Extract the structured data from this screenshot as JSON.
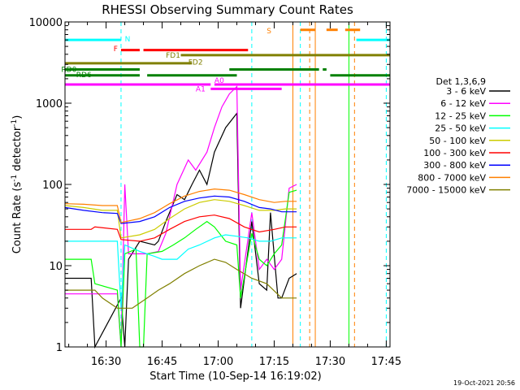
{
  "chart_data": {
    "type": "line",
    "title": "RHESSI Observing Summary Count Rates",
    "xlabel": "Start Time (10-Sep-14 16:19:02)",
    "ylabel": "Count Rate (s-1 detector-1)",
    "x_unit": "minutes after 16:19:02",
    "xlim": [
      0,
      87
    ],
    "ylim": [
      1,
      10000
    ],
    "y_scale": "log",
    "x_ticks": [
      {
        "x": 11,
        "label": "16:30"
      },
      {
        "x": 26,
        "label": "16:45"
      },
      {
        "x": 41,
        "label": "17:00"
      },
      {
        "x": 56,
        "label": "17:15"
      },
      {
        "x": 71,
        "label": "17:30"
      },
      {
        "x": 86,
        "label": "17:45"
      }
    ],
    "y_ticks": [
      {
        "y": 10000,
        "label": "10000"
      },
      {
        "y": 1000,
        "label": "1000"
      },
      {
        "y": 100,
        "label": "100"
      },
      {
        "y": 10,
        "label": "10"
      },
      {
        "y": 1,
        "label": "1"
      }
    ],
    "legend_title": "Det 1,3,6,9",
    "legend_position": "right",
    "series": [
      {
        "name": "3 - 6 keV",
        "color": "#000000",
        "points": [
          [
            0,
            7
          ],
          [
            7,
            7
          ],
          [
            8,
            1
          ],
          [
            15,
            4
          ],
          [
            16,
            1
          ],
          [
            17,
            12
          ],
          [
            20,
            20
          ],
          [
            24,
            18
          ],
          [
            25,
            20
          ],
          [
            27,
            35
          ],
          [
            30,
            75
          ],
          [
            32,
            65
          ],
          [
            34,
            100
          ],
          [
            36,
            150
          ],
          [
            38,
            100
          ],
          [
            40,
            250
          ],
          [
            43,
            500
          ],
          [
            46,
            750
          ],
          [
            47,
            3
          ],
          [
            50,
            35
          ],
          [
            52,
            6
          ],
          [
            54,
            5
          ],
          [
            55,
            45
          ],
          [
            57,
            4
          ],
          [
            58,
            4
          ],
          [
            60,
            7
          ],
          [
            62,
            8
          ]
        ]
      },
      {
        "name": "6 - 12 keV",
        "color": "#ff00ff",
        "points": [
          [
            0,
            4.5
          ],
          [
            14,
            4.5
          ],
          [
            15,
            1
          ],
          [
            16,
            100
          ],
          [
            17,
            14
          ],
          [
            22,
            14
          ],
          [
            25,
            15
          ],
          [
            27,
            25
          ],
          [
            30,
            100
          ],
          [
            33,
            200
          ],
          [
            35,
            150
          ],
          [
            38,
            250
          ],
          [
            40,
            500
          ],
          [
            42,
            900
          ],
          [
            44,
            1300
          ],
          [
            46,
            1600
          ],
          [
            47,
            5
          ],
          [
            50,
            45
          ],
          [
            52,
            9
          ],
          [
            54,
            12
          ],
          [
            56,
            9
          ],
          [
            58,
            12
          ],
          [
            60,
            90
          ],
          [
            62,
            100
          ]
        ]
      },
      {
        "name": "12 - 25 keV",
        "color": "#00ff00",
        "points": [
          [
            0,
            12
          ],
          [
            7,
            12
          ],
          [
            8,
            6
          ],
          [
            14,
            5
          ],
          [
            15,
            1
          ],
          [
            16,
            14
          ],
          [
            19,
            16
          ],
          [
            20,
            1
          ],
          [
            21,
            1
          ],
          [
            22,
            14
          ],
          [
            26,
            15
          ],
          [
            29,
            18
          ],
          [
            32,
            22
          ],
          [
            35,
            28
          ],
          [
            38,
            35
          ],
          [
            40,
            30
          ],
          [
            43,
            20
          ],
          [
            46,
            18
          ],
          [
            47,
            4
          ],
          [
            50,
            25
          ],
          [
            52,
            12
          ],
          [
            54,
            10
          ],
          [
            56,
            14
          ],
          [
            58,
            18
          ],
          [
            60,
            80
          ],
          [
            62,
            85
          ]
        ]
      },
      {
        "name": "25 - 50 keV",
        "color": "#00ffff",
        "points": [
          [
            0,
            20
          ],
          [
            14,
            20
          ],
          [
            15,
            3
          ],
          [
            16,
            18
          ],
          [
            20,
            15
          ],
          [
            24,
            13
          ],
          [
            26,
            12
          ],
          [
            30,
            12
          ],
          [
            33,
            16
          ],
          [
            36,
            18
          ],
          [
            40,
            22
          ],
          [
            43,
            24
          ],
          [
            46,
            23
          ],
          [
            49,
            22
          ],
          [
            52,
            20
          ],
          [
            55,
            20
          ],
          [
            58,
            22
          ],
          [
            62,
            22
          ]
        ]
      },
      {
        "name": "50 - 100 keV",
        "color": "#cccc00",
        "points": [
          [
            0,
            55
          ],
          [
            5,
            52
          ],
          [
            10,
            48
          ],
          [
            14,
            48
          ],
          [
            15,
            22
          ],
          [
            20,
            24
          ],
          [
            24,
            28
          ],
          [
            28,
            38
          ],
          [
            32,
            50
          ],
          [
            36,
            60
          ],
          [
            40,
            65
          ],
          [
            44,
            62
          ],
          [
            48,
            55
          ],
          [
            52,
            48
          ],
          [
            56,
            48
          ],
          [
            59,
            50
          ],
          [
            62,
            50
          ]
        ]
      },
      {
        "name": "100 - 300 keV",
        "color": "#ff0000",
        "points": [
          [
            0,
            28
          ],
          [
            7,
            28
          ],
          [
            8,
            30
          ],
          [
            14,
            28
          ],
          [
            15,
            21
          ],
          [
            20,
            20
          ],
          [
            24,
            22
          ],
          [
            28,
            28
          ],
          [
            32,
            35
          ],
          [
            36,
            40
          ],
          [
            40,
            42
          ],
          [
            44,
            38
          ],
          [
            48,
            30
          ],
          [
            52,
            26
          ],
          [
            56,
            28
          ],
          [
            59,
            30
          ],
          [
            62,
            30
          ]
        ]
      },
      {
        "name": "300 - 800 keV",
        "color": "#0000ff",
        "points": [
          [
            0,
            52
          ],
          [
            5,
            48
          ],
          [
            10,
            45
          ],
          [
            14,
            44
          ],
          [
            15,
            33
          ],
          [
            20,
            35
          ],
          [
            24,
            40
          ],
          [
            28,
            52
          ],
          [
            32,
            62
          ],
          [
            36,
            68
          ],
          [
            40,
            72
          ],
          [
            44,
            70
          ],
          [
            48,
            62
          ],
          [
            52,
            52
          ],
          [
            55,
            50
          ],
          [
            58,
            46
          ],
          [
            62,
            46
          ]
        ]
      },
      {
        "name": "800 - 7000 keV",
        "color": "#ff8000",
        "points": [
          [
            0,
            58
          ],
          [
            5,
            57
          ],
          [
            10,
            55
          ],
          [
            14,
            55
          ],
          [
            15,
            34
          ],
          [
            20,
            38
          ],
          [
            24,
            45
          ],
          [
            28,
            58
          ],
          [
            32,
            72
          ],
          [
            36,
            82
          ],
          [
            40,
            88
          ],
          [
            44,
            85
          ],
          [
            48,
            75
          ],
          [
            52,
            65
          ],
          [
            56,
            60
          ],
          [
            59,
            62
          ],
          [
            62,
            62
          ]
        ]
      },
      {
        "name": "7000 - 15000 keV",
        "color": "#808000",
        "points": [
          [
            0,
            5
          ],
          [
            8,
            5
          ],
          [
            10,
            4
          ],
          [
            14,
            3
          ],
          [
            18,
            3
          ],
          [
            22,
            4
          ],
          [
            25,
            5
          ],
          [
            28,
            6
          ],
          [
            32,
            8
          ],
          [
            36,
            10
          ],
          [
            40,
            12
          ],
          [
            43,
            11
          ],
          [
            46,
            9
          ],
          [
            50,
            7
          ],
          [
            54,
            6
          ],
          [
            58,
            4
          ],
          [
            62,
            4
          ]
        ]
      }
    ],
    "flags": [
      {
        "label": "N",
        "color": "#00ffff",
        "segments": [
          [
            0,
            15
          ],
          [
            78,
            87
          ]
        ],
        "y": 6000,
        "label_x": 16,
        "label_y": 6200
      },
      {
        "label": "F",
        "color": "#ff0000",
        "segments": [
          [
            15,
            20
          ],
          [
            21,
            49
          ]
        ],
        "y": 4500,
        "label_x": 13,
        "label_y": 4700
      },
      {
        "label": "FD1",
        "color": "#808000",
        "segments": [
          [
            31,
            87
          ]
        ],
        "y": 3900,
        "label_x": 27,
        "label_y": 3900
      },
      {
        "label": "FD2",
        "color": "#808000",
        "segments": [
          [
            0,
            34
          ]
        ],
        "y": 3100,
        "label_x": 33,
        "label_y": 3200
      },
      {
        "label": "RD0",
        "color": "#008000",
        "segments": [
          [
            0,
            20
          ],
          [
            44,
            68
          ],
          [
            69,
            70
          ]
        ],
        "y": 2600,
        "label_x": -1,
        "label_y": 2600
      },
      {
        "label": "RD6",
        "color": "#008000",
        "segments": [
          [
            0,
            20
          ],
          [
            22,
            46
          ],
          [
            71,
            87
          ]
        ],
        "y": 2200,
        "label_x": 3,
        "label_y": 2250
      },
      {
        "label": "A1",
        "color": "#ff00ff",
        "segments": [
          [
            0,
            39
          ],
          [
            40,
            87
          ]
        ],
        "y": 1700,
        "label_x": 35,
        "label_y": 1500
      },
      {
        "label": "A0",
        "color": "#ff00ff",
        "segments": [
          [
            39,
            58
          ]
        ],
        "y": 1500,
        "label_x": 40,
        "label_y": 1900
      },
      {
        "label": "S",
        "color": "#ff8000",
        "segments": [
          [
            63,
            67
          ],
          [
            70,
            73
          ],
          [
            75,
            79
          ]
        ],
        "y": 8000,
        "label_x": 54,
        "label_y": 7800
      }
    ],
    "vlines": [
      {
        "x": 15,
        "color": "#00ffff",
        "dashed": true
      },
      {
        "x": 50,
        "color": "#00ffff",
        "dashed": true
      },
      {
        "x": 61,
        "color": "#ff8000",
        "dashed": false
      },
      {
        "x": 63,
        "color": "#00ffff",
        "dashed": true
      },
      {
        "x": 65.5,
        "color": "#ff8000",
        "dashed": true
      },
      {
        "x": 67,
        "color": "#ff8000",
        "dashed": false
      },
      {
        "x": 76,
        "color": "#00ff00",
        "dashed": false
      },
      {
        "x": 77.5,
        "color": "#ff8000",
        "dashed": true
      },
      {
        "x": 86,
        "color": "#00ffff",
        "dashed": true
      }
    ]
  },
  "footer": {
    "timestamp": "19-Oct-2021 20:56"
  }
}
